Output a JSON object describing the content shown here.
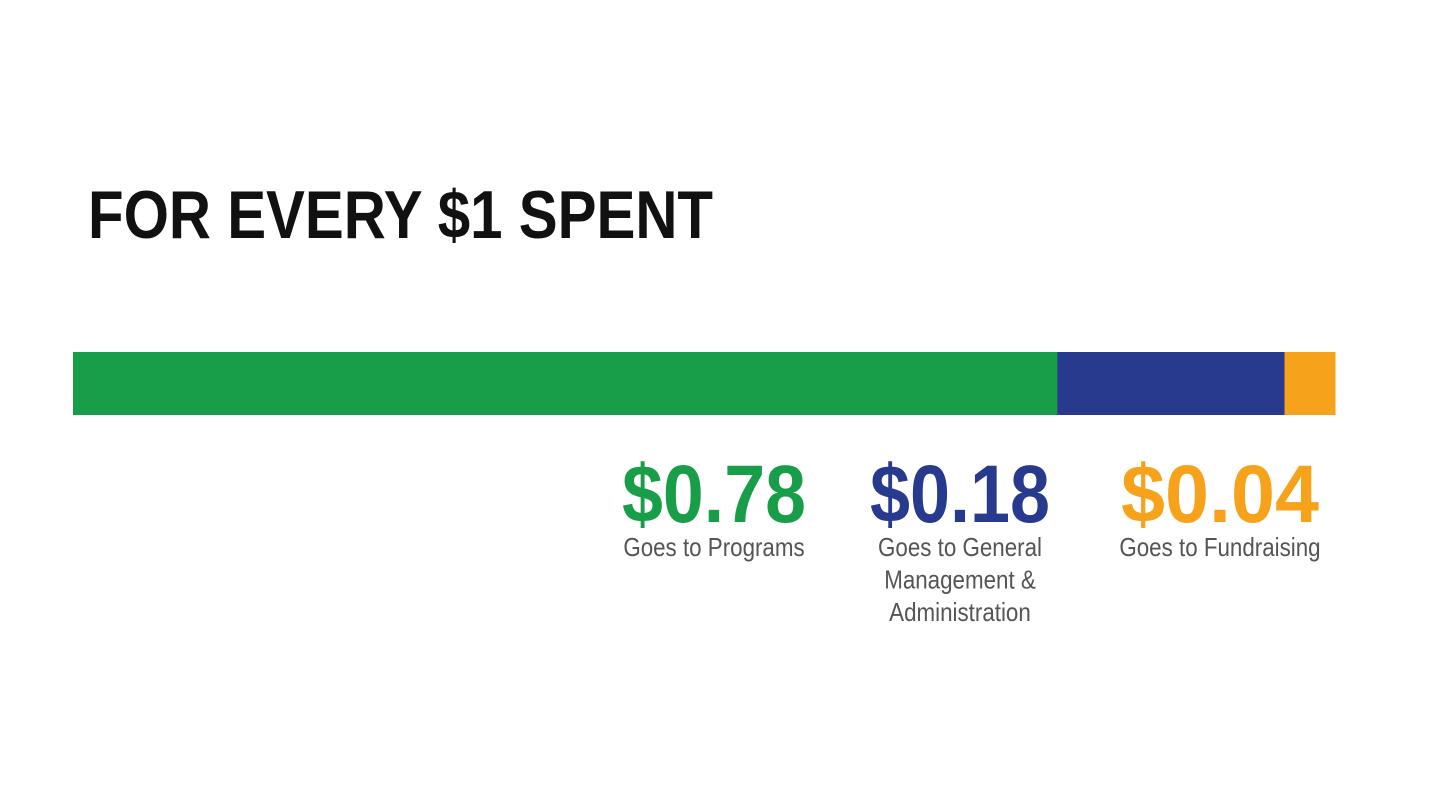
{
  "chart_data": {
    "type": "bar",
    "orientation": "horizontal-stacked",
    "title": "FOR EVERY $1 SPENT",
    "total": 1,
    "series": [
      {
        "name": "Programs",
        "value": 0.78,
        "value_label": "$0.78",
        "label_lines": [
          "Goes to Programs"
        ],
        "color": "#189e48"
      },
      {
        "name": "General Management & Administration",
        "value": 0.18,
        "value_label": "$0.18",
        "label_lines": [
          "Goes to General",
          "Management &",
          "Administration"
        ],
        "color": "#283a8e"
      },
      {
        "name": "Fundraising",
        "value": 0.04,
        "value_label": "$0.04",
        "label_lines": [
          "Goes to Fundraising"
        ],
        "color": "#f7a21b"
      }
    ],
    "label_color": "#555555",
    "grid": false
  }
}
